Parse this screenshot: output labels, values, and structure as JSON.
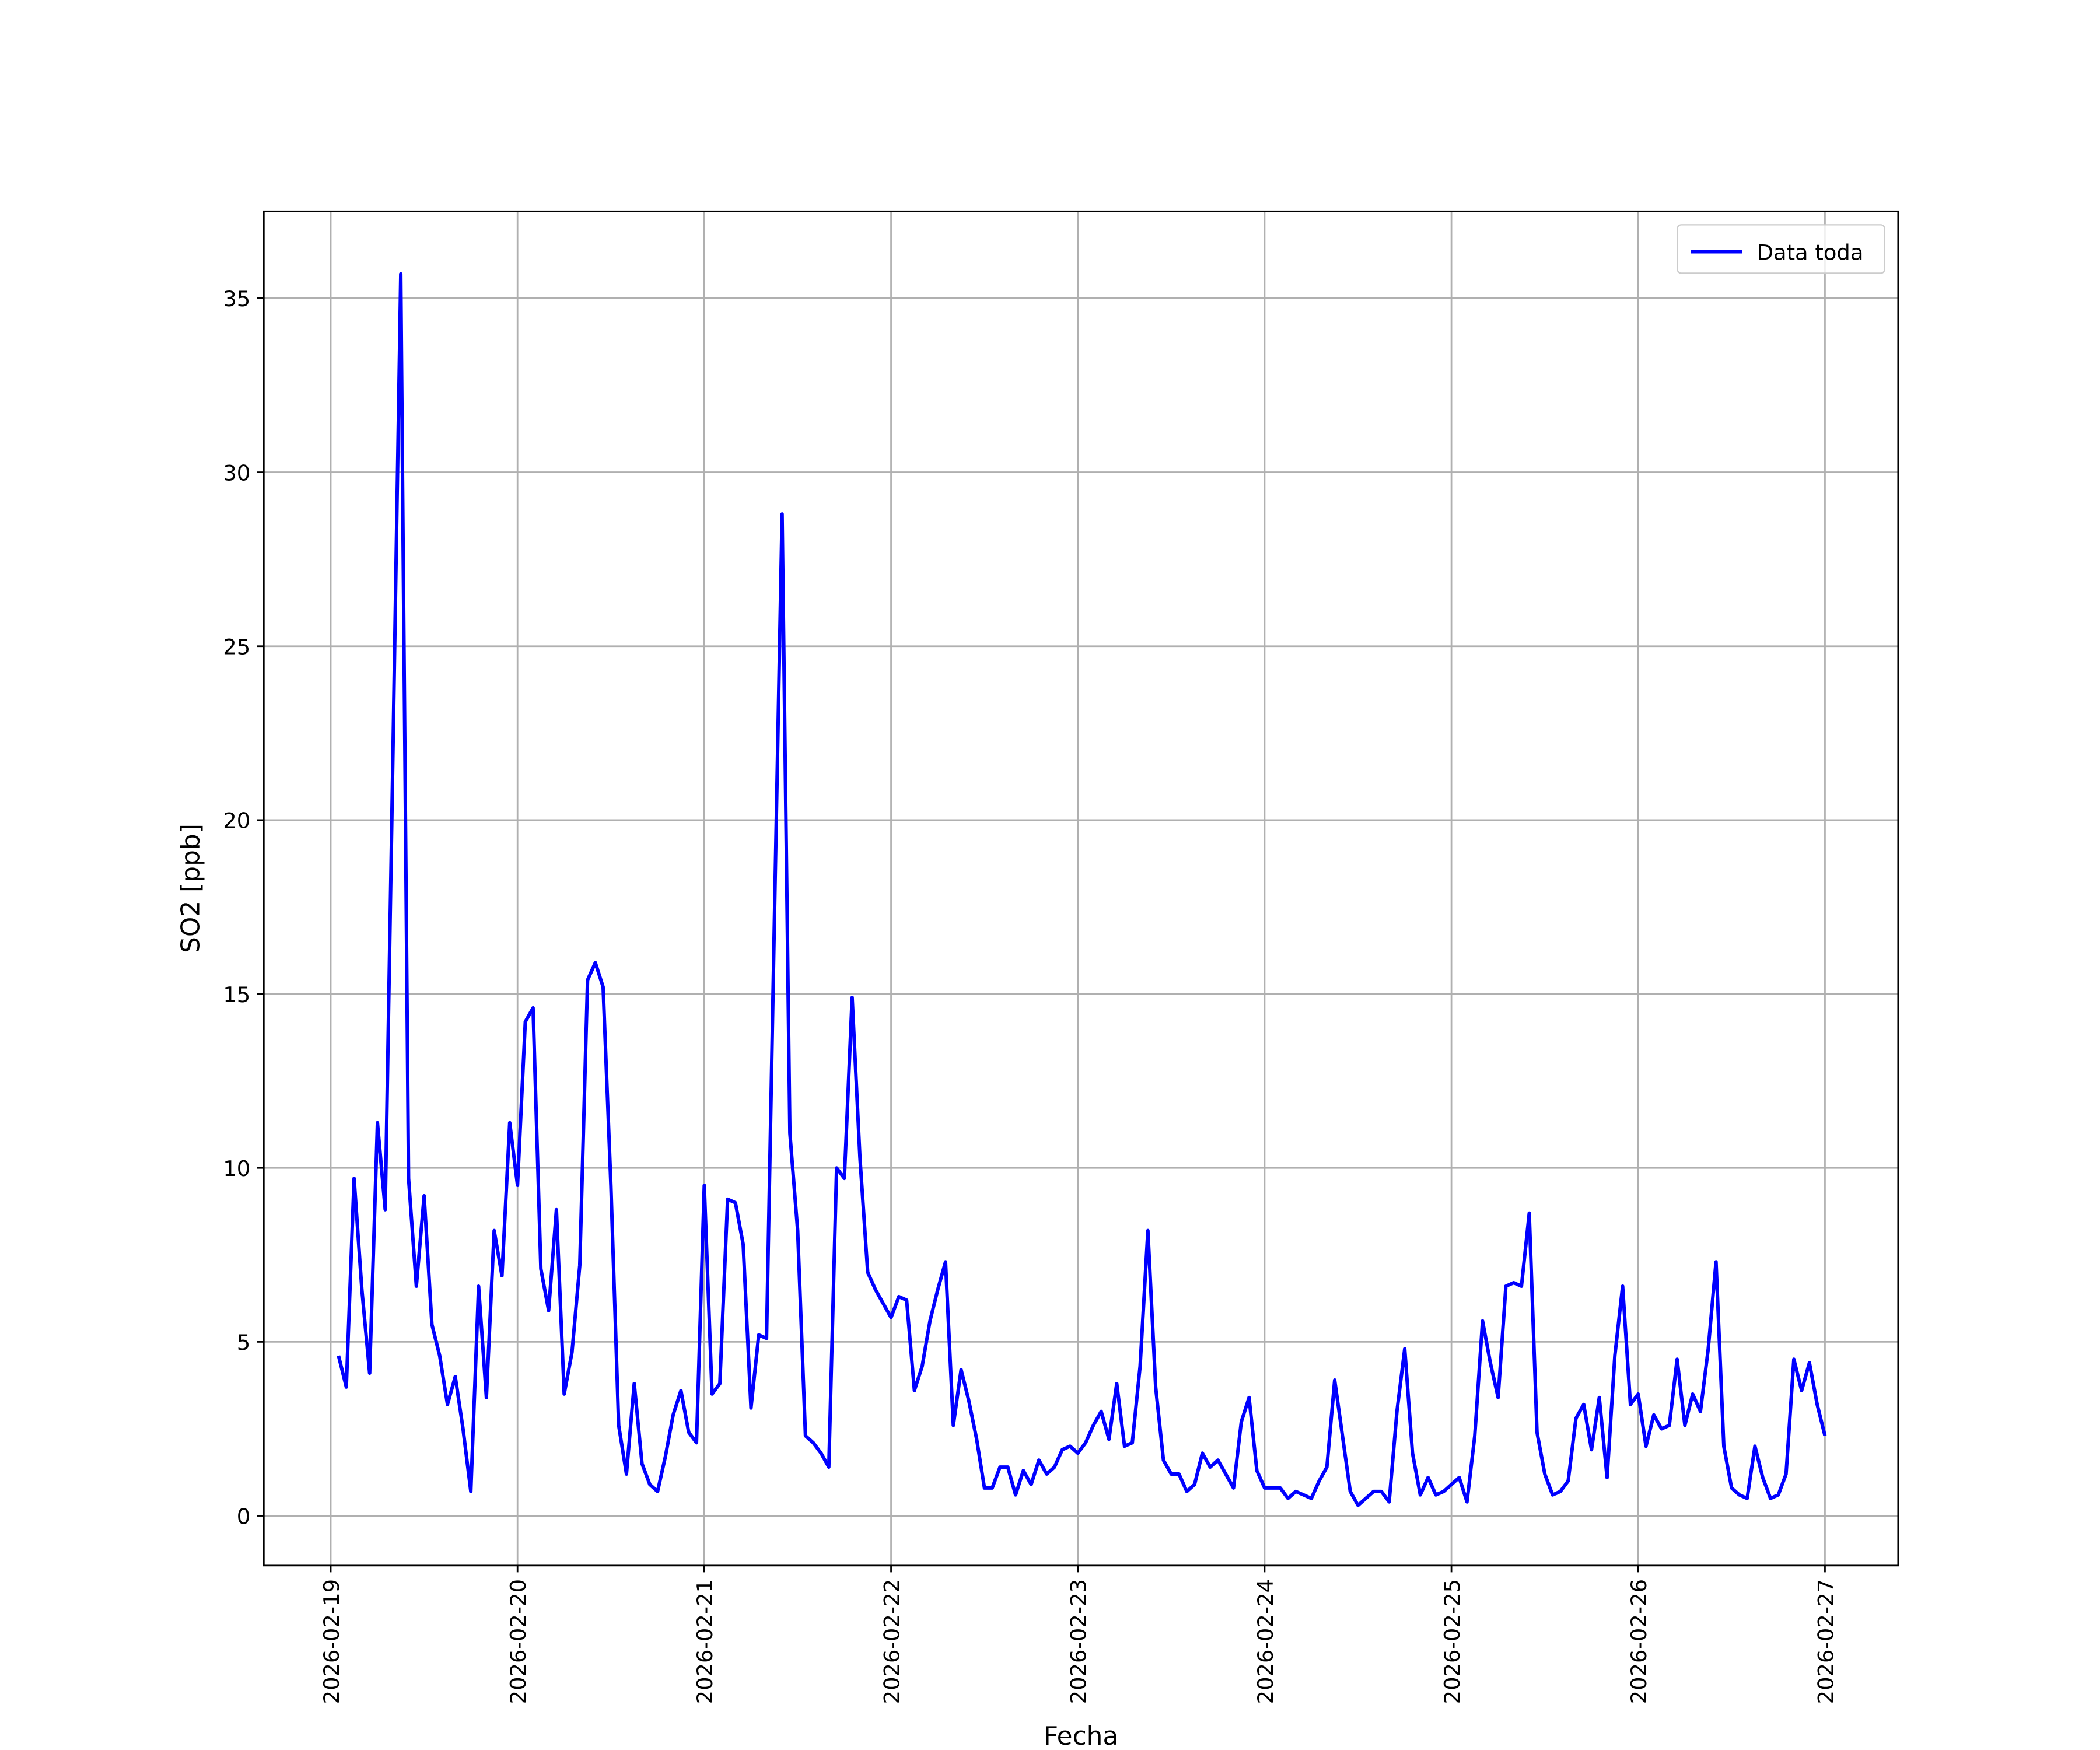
{
  "chart_data": {
    "type": "line",
    "xlabel": "Fecha",
    "ylabel": "SO2 [ppb]",
    "x": [
      1,
      2,
      3,
      4,
      5,
      6,
      7,
      8,
      9,
      10,
      11,
      12,
      13,
      14,
      15,
      16,
      17,
      18,
      19,
      20,
      21,
      22,
      23,
      24,
      25,
      26,
      27,
      28,
      29,
      30,
      31,
      32,
      33,
      34,
      35,
      36,
      37,
      38,
      39,
      40,
      41,
      42,
      43,
      44,
      45,
      46,
      47,
      48,
      49,
      50,
      51,
      52,
      53,
      54,
      55,
      56,
      57,
      58,
      59,
      60,
      61,
      62,
      63,
      64,
      65,
      66,
      67,
      68,
      69,
      70,
      71,
      72,
      73,
      74,
      75,
      76,
      77,
      78,
      79,
      80,
      81,
      82,
      83,
      84,
      85,
      86,
      87,
      88,
      89,
      90,
      91,
      92,
      93,
      94,
      95,
      96,
      97,
      98,
      99,
      100,
      101,
      102,
      103,
      104,
      105,
      106,
      107,
      108,
      109,
      110,
      111,
      112,
      113,
      114,
      115,
      116,
      117,
      118,
      119,
      120,
      121,
      122,
      123,
      124,
      125,
      126,
      127,
      128,
      129,
      130,
      131,
      132,
      133,
      134,
      135,
      136,
      137,
      138,
      139,
      140,
      141,
      142,
      143,
      144,
      145,
      146,
      147,
      148,
      149,
      150,
      151,
      152,
      153,
      154,
      155,
      156,
      157,
      158,
      159,
      160,
      161,
      162,
      163,
      164,
      165,
      166,
      167,
      168,
      169,
      170,
      171,
      172,
      173,
      174,
      175,
      176,
      177,
      178,
      179,
      180,
      181,
      182,
      183,
      184,
      185,
      186,
      187,
      188,
      189,
      190,
      191,
      192
    ],
    "series": [
      {
        "name": "Data toda",
        "color": "#0000ff",
        "values": [
          4.6,
          3.7,
          9.7,
          6.5,
          4.1,
          11.3,
          8.8,
          22,
          35.7,
          9.7,
          6.6,
          9.2,
          5.5,
          4.6,
          3.2,
          4.0,
          2.5,
          0.7,
          6.6,
          3.4,
          8.2,
          6.9,
          11.3,
          9.5,
          14.2,
          14.6,
          7.1,
          5.9,
          8.8,
          3.5,
          4.7,
          7.2,
          15.4,
          15.9,
          15.2,
          9.5,
          2.6,
          1.2,
          3.8,
          1.5,
          0.9,
          0.7,
          1.7,
          2.9,
          3.6,
          2.4,
          2.1,
          9.5,
          3.5,
          3.8,
          9.1,
          9.0,
          7.8,
          3.1,
          5.2,
          5.1,
          17,
          28.8,
          11.0,
          8.2,
          2.3,
          2.1,
          1.8,
          1.4,
          10.0,
          9.7,
          14.9,
          10.3,
          7.0,
          6.5,
          6.1,
          5.7,
          6.3,
          6.2,
          3.6,
          4.3,
          5.6,
          6.5,
          7.3,
          2.6,
          4.2,
          3.3,
          2.2,
          0.8,
          0.8,
          1.4,
          1.4,
          0.6,
          1.3,
          0.9,
          1.6,
          1.2,
          1.4,
          1.9,
          2.0,
          1.8,
          2.1,
          2.6,
          3.0,
          2.2,
          3.8,
          2.0,
          2.1,
          4.3,
          8.2,
          3.7,
          1.6,
          1.2,
          1.2,
          0.7,
          0.9,
          1.8,
          1.4,
          1.6,
          1.2,
          0.8,
          2.7,
          3.4,
          1.3,
          0.8,
          0.8,
          0.8,
          0.5,
          0.7,
          0.6,
          0.5,
          1.0,
          1.4,
          3.9,
          2.3,
          0.7,
          0.3,
          0.5,
          0.7,
          0.7,
          0.4,
          3.0,
          4.8,
          1.8,
          0.6,
          1.1,
          0.6,
          0.7,
          0.9,
          1.1,
          0.4,
          2.3,
          5.6,
          4.4,
          3.4,
          6.6,
          6.7,
          6.6,
          8.7,
          2.4,
          1.2,
          0.6,
          0.7,
          1.0,
          2.8,
          3.2,
          1.9,
          3.4,
          1.1,
          4.6,
          6.6,
          3.2,
          3.5,
          2.0,
          2.9,
          2.5,
          2.6,
          4.5,
          2.6,
          3.5,
          3.0,
          4.8,
          7.3,
          2.0,
          0.8,
          0.6,
          0.5,
          2.0,
          1.1,
          0.5,
          0.6,
          1.2,
          4.5,
          3.6,
          4.4,
          3.2,
          2.3
        ]
      }
    ],
    "xlim": [
      -8.6,
      201.4
    ],
    "xticks": [
      {
        "value": 0,
        "label": "2026-02-19"
      },
      {
        "value": 24,
        "label": "2026-02-20"
      },
      {
        "value": 48,
        "label": "2026-02-21"
      },
      {
        "value": 72,
        "label": "2026-02-22"
      },
      {
        "value": 96,
        "label": "2026-02-23"
      },
      {
        "value": 120,
        "label": "2026-02-24"
      },
      {
        "value": 144,
        "label": "2026-02-25"
      },
      {
        "value": 168,
        "label": "2026-02-26"
      },
      {
        "value": 192,
        "label": "2026-02-27"
      }
    ],
    "ylim": [
      -1.43,
      37.5
    ],
    "yticks": [
      0,
      5,
      10,
      15,
      20,
      25,
      30,
      35
    ],
    "grid": true,
    "legend": "upper right"
  }
}
